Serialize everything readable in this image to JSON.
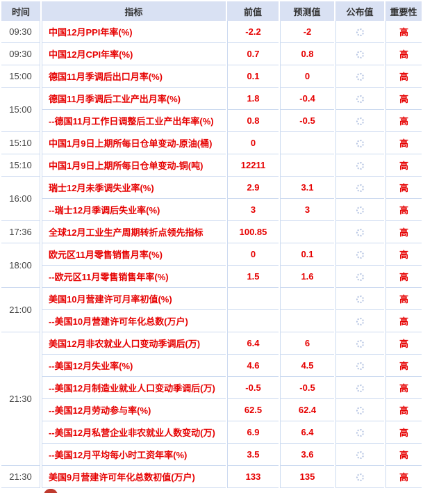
{
  "header": {
    "columns": [
      "时间",
      "指标",
      "前值",
      "预测值",
      "公布值",
      "重要性"
    ]
  },
  "rows": [
    {
      "time": "09:30",
      "time_rowspan": 1,
      "indicator": "中国12月PPI年率(%)",
      "previous": "-2.2",
      "forecast": "-2",
      "published": "",
      "published_icon": "loading-spinner",
      "importance": "高"
    },
    {
      "time": "09:30",
      "time_rowspan": 1,
      "indicator": "中国12月CPI年率(%)",
      "previous": "0.7",
      "forecast": "0.8",
      "published": "",
      "published_icon": "loading-spinner",
      "importance": "高"
    },
    {
      "time": "15:00",
      "time_rowspan": 1,
      "indicator": "德国11月季调后出口月率(%)",
      "previous": "0.1",
      "forecast": "0",
      "published": "",
      "published_icon": "loading-spinner",
      "importance": "高"
    },
    {
      "time": "15:00",
      "time_rowspan": 2,
      "indicator": "德国11月季调后工业产出月率(%)",
      "previous": "1.8",
      "forecast": "-0.4",
      "published": "",
      "published_icon": "loading-spinner",
      "importance": "高"
    },
    {
      "time": null,
      "indicator": "--德国11月工作日调整后工业产出年率(%)",
      "previous": "0.8",
      "forecast": "-0.5",
      "published": "",
      "published_icon": "loading-spinner",
      "importance": "高"
    },
    {
      "time": "15:10",
      "time_rowspan": 1,
      "indicator": "中国1月9日上期所每日仓单变动-原油(桶)",
      "previous": "0",
      "forecast": "",
      "published": "",
      "published_icon": "loading-spinner",
      "importance": "高"
    },
    {
      "time": "15:10",
      "time_rowspan": 1,
      "indicator": "中国1月9日上期所每日仓单变动-铜(吨)",
      "previous": "12211",
      "forecast": "",
      "published": "",
      "published_icon": "loading-spinner",
      "importance": "高"
    },
    {
      "time": "16:00",
      "time_rowspan": 2,
      "indicator": "瑞士12月未季调失业率(%)",
      "previous": "2.9",
      "forecast": "3.1",
      "published": "",
      "published_icon": "loading-spinner",
      "importance": "高"
    },
    {
      "time": null,
      "indicator": "--瑞士12月季调后失业率(%)",
      "previous": "3",
      "forecast": "3",
      "published": "",
      "published_icon": "loading-spinner",
      "importance": "高"
    },
    {
      "time": "17:36",
      "time_rowspan": 1,
      "indicator": "全球12月工业生产周期转折点领先指标",
      "previous": "100.85",
      "forecast": "",
      "published": "",
      "published_icon": "loading-spinner",
      "importance": "高"
    },
    {
      "time": "18:00",
      "time_rowspan": 2,
      "indicator": "欧元区11月零售销售月率(%)",
      "previous": "0",
      "forecast": "0.1",
      "published": "",
      "published_icon": "loading-spinner",
      "importance": "高"
    },
    {
      "time": null,
      "indicator": "--欧元区11月零售销售年率(%)",
      "previous": "1.5",
      "forecast": "1.6",
      "published": "",
      "published_icon": "loading-spinner",
      "importance": "高"
    },
    {
      "time": "21:00",
      "time_rowspan": 2,
      "indicator": "美国10月营建许可月率初值(%)",
      "previous": "",
      "forecast": "",
      "published": "",
      "published_icon": "loading-spinner",
      "importance": "高"
    },
    {
      "time": null,
      "indicator": "--美国10月营建许可年化总数(万户)",
      "previous": "",
      "forecast": "",
      "published": "",
      "published_icon": "loading-spinner",
      "importance": "高"
    },
    {
      "time": "21:30",
      "time_rowspan": 6,
      "indicator": "美国12月非农就业人口变动季调后(万)",
      "previous": "6.4",
      "forecast": "6",
      "published": "",
      "published_icon": "loading-spinner",
      "importance": "高"
    },
    {
      "time": null,
      "indicator": "--美国12月失业率(%)",
      "previous": "4.6",
      "forecast": "4.5",
      "published": "",
      "published_icon": "loading-spinner",
      "importance": "高"
    },
    {
      "time": null,
      "indicator": "--美国12月制造业就业人口变动季调后(万)",
      "previous": "-0.5",
      "forecast": "-0.5",
      "published": "",
      "published_icon": "loading-spinner",
      "importance": "高"
    },
    {
      "time": null,
      "indicator": "--美国12月劳动参与率(%)",
      "previous": "62.5",
      "forecast": "62.4",
      "published": "",
      "published_icon": "loading-spinner",
      "importance": "高"
    },
    {
      "time": null,
      "indicator": "--美国12月私营企业非农就业人数变动(万)",
      "previous": "6.9",
      "forecast": "6.4",
      "published": "",
      "published_icon": "loading-spinner",
      "importance": "高"
    },
    {
      "time": null,
      "indicator": "--美国12月平均每小时工资年率(%)",
      "previous": "3.5",
      "forecast": "3.6",
      "published": "",
      "published_icon": "loading-spinner",
      "importance": "高"
    },
    {
      "time": "21:30",
      "time_rowspan": 1,
      "indicator": "美国9月营建许可年化总数初值(万户)",
      "previous": "133",
      "forecast": "135",
      "published": "",
      "published_icon": "loading-spinner",
      "importance": "高",
      "marker": true
    }
  ],
  "colors": {
    "header_bg": "#d9e1f3",
    "border": "#ccdaf0",
    "accent_red": "#e60000",
    "time_text": "#444444",
    "header_text": "#333333",
    "spinner": "#b5c4e2",
    "marker_red": "#bf3a2e"
  }
}
